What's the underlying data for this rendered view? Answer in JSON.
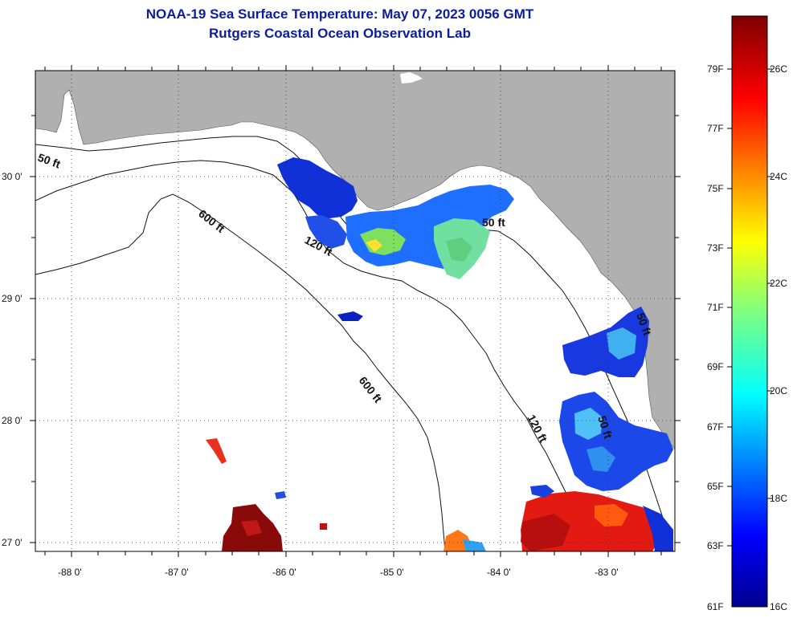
{
  "title": "NOAA-19 Sea Surface Temperature:  May 07, 2023 0056 GMT",
  "subtitle": "Rutgers Coastal Ocean Observation Lab",
  "axes": {
    "lat_labels": [
      "30 0'",
      "29 0'",
      "28 0'",
      "27 0'"
    ],
    "lon_labels": [
      "-88 0'",
      "-87 0'",
      "-86 0'",
      "-85 0'",
      "-84 0'",
      "-83 0'"
    ]
  },
  "contours": [
    "50 ft",
    "600 ft",
    "120 ft",
    "600 ft",
    "120 ft",
    "50 ft",
    "50 ft",
    "50 ft"
  ],
  "colorbar": {
    "fahrenheit": [
      "79F",
      "77F",
      "75F",
      "73F",
      "71F",
      "69F",
      "67F",
      "65F",
      "63F",
      "61F"
    ],
    "celsius": [
      "26C",
      "24C",
      "22C",
      "20C",
      "18C",
      "16C"
    ]
  },
  "colors": {
    "title": "#0b1d9e",
    "land": "#b0b0b0",
    "ocean": "#ffffff"
  }
}
